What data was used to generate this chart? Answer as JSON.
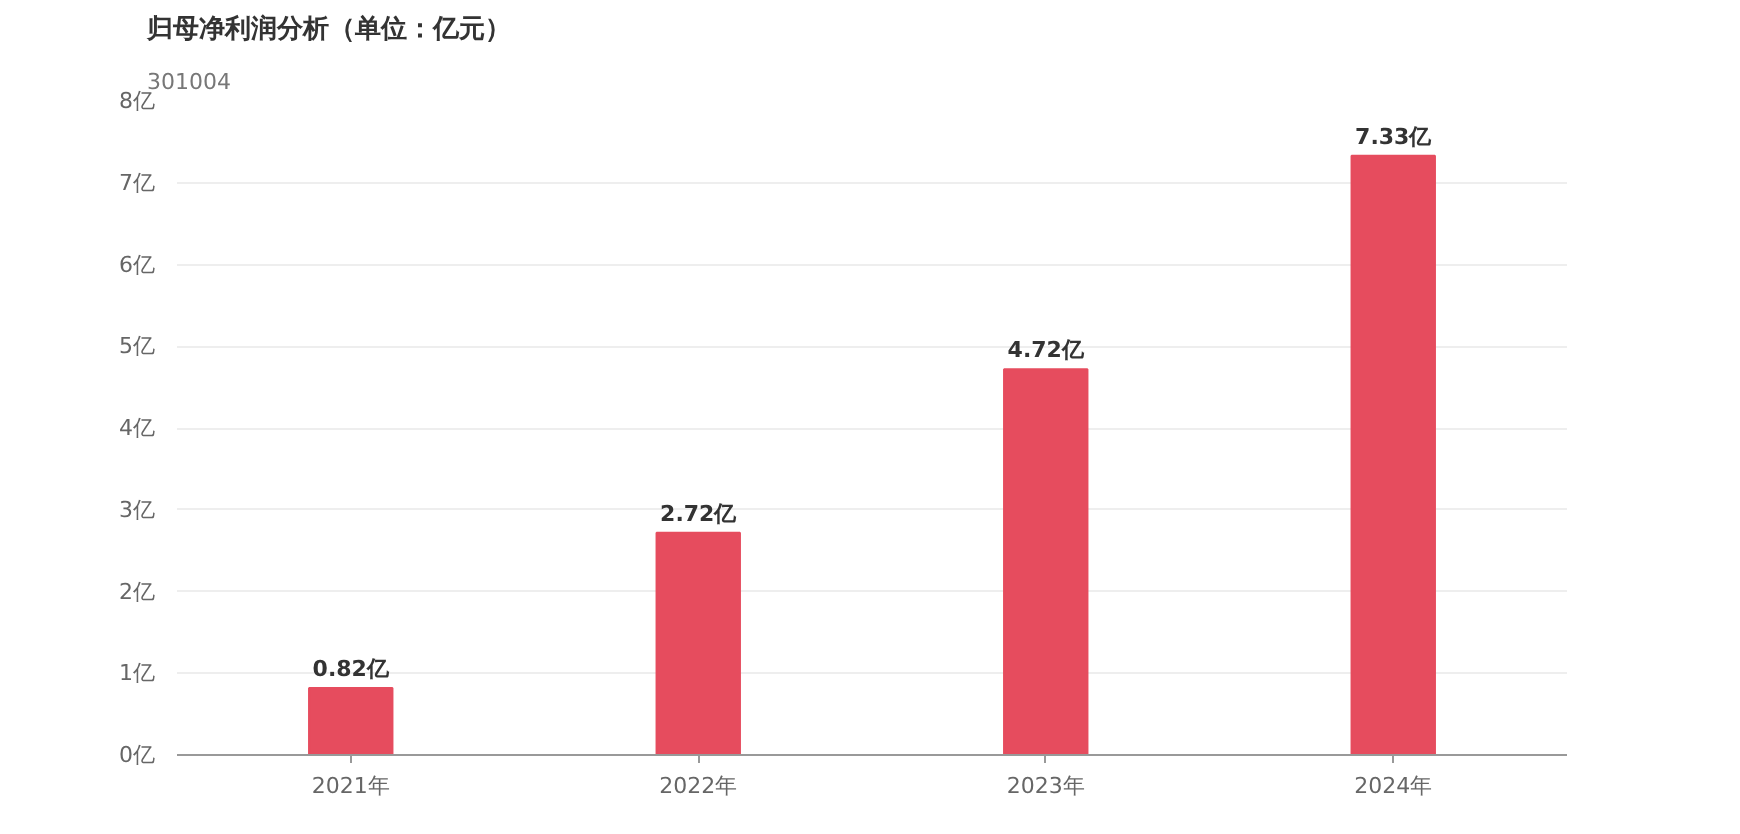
{
  "chart_data": {
    "type": "bar",
    "title": "归母净利润分析（单位：亿元）",
    "subtitle": "301004",
    "categories": [
      "2021年",
      "2022年",
      "2023年",
      "2024年"
    ],
    "values": [
      0.82,
      2.72,
      4.72,
      7.33
    ],
    "value_labels": [
      "0.82亿",
      "2.72亿",
      "4.72亿",
      "7.33亿"
    ],
    "color": "#e64c5e",
    "ylim": [
      0,
      8
    ],
    "yticks": [
      {
        "value": 0,
        "label": "0亿"
      },
      {
        "value": 1,
        "label": "1亿"
      },
      {
        "value": 2,
        "label": "2亿"
      },
      {
        "value": 3,
        "label": "3亿"
      },
      {
        "value": 4,
        "label": "4亿"
      },
      {
        "value": 5,
        "label": "5亿"
      },
      {
        "value": 6,
        "label": "6亿"
      },
      {
        "value": 7,
        "label": "7亿"
      },
      {
        "value": 8,
        "label": "8亿"
      }
    ],
    "grid": "y"
  }
}
